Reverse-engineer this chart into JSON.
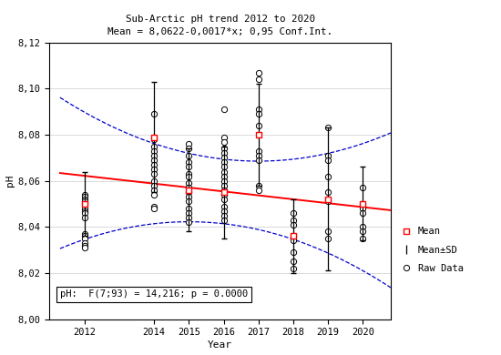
{
  "title_line1": "Sub-Arctic pH trend 2012 to 2020",
  "title_line2": "Mean = 8,0622-0,0017*x; 0,95 Conf.Int.",
  "xlabel": "Year",
  "ylabel": "pH",
  "ylim": [
    8.0,
    8.12
  ],
  "yticks": [
    8.0,
    8.02,
    8.04,
    8.06,
    8.08,
    8.1,
    8.12
  ],
  "years": [
    2012,
    2014,
    2015,
    2016,
    2017,
    2018,
    2019,
    2020
  ],
  "annual_means": [
    8.05,
    8.079,
    8.056,
    8.055,
    8.08,
    8.036,
    8.052,
    8.05
  ],
  "annual_sds": [
    0.014,
    0.024,
    0.018,
    0.02,
    0.022,
    0.016,
    0.031,
    0.016
  ],
  "raw_data": {
    "2012": [
      8.054,
      8.053,
      8.052,
      8.051,
      8.05,
      8.048,
      8.047,
      8.046,
      8.044,
      8.037,
      8.036,
      8.035,
      8.033,
      8.032,
      8.031
    ],
    "2014": [
      8.089,
      8.079,
      8.078,
      8.075,
      8.073,
      8.071,
      8.069,
      8.067,
      8.065,
      8.063,
      8.06,
      8.058,
      8.056,
      8.054,
      8.049,
      8.048
    ],
    "2015": [
      8.076,
      8.074,
      8.071,
      8.068,
      8.066,
      8.063,
      8.062,
      8.059,
      8.057,
      8.055,
      8.053,
      8.051,
      8.048,
      8.046,
      8.044,
      8.042
    ],
    "2016": [
      8.091,
      8.079,
      8.077,
      8.074,
      8.072,
      8.07,
      8.068,
      8.066,
      8.064,
      8.062,
      8.06,
      8.058,
      8.056,
      8.054,
      8.052,
      8.049,
      8.047,
      8.045,
      8.043
    ],
    "2017": [
      8.107,
      8.104,
      8.091,
      8.089,
      8.084,
      8.073,
      8.071,
      8.069,
      8.058,
      8.056
    ],
    "2018": [
      8.046,
      8.043,
      8.041,
      8.036,
      8.034,
      8.029,
      8.025,
      8.022
    ],
    "2019": [
      8.083,
      8.071,
      8.069,
      8.062,
      8.055,
      8.051,
      8.038,
      8.035
    ],
    "2020": [
      8.057,
      8.05,
      8.048,
      8.046,
      8.04,
      8.038,
      8.035
    ]
  },
  "annotation": "pH:  F(7;93) = 14,216; p = 0.0000",
  "line_color": "#ff0000",
  "conf_color": "#0000cc",
  "marker_color": "#000000",
  "background_color": "#ffffff",
  "grid_color": "#cccccc"
}
